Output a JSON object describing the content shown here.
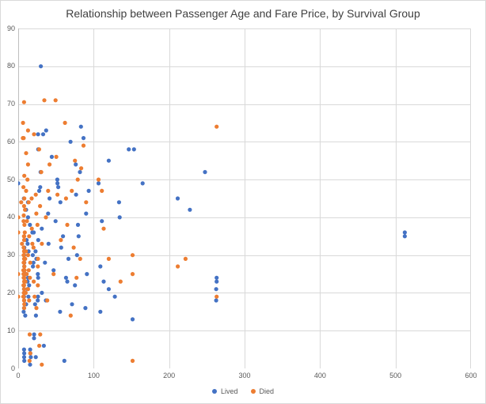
{
  "chart_data": {
    "type": "scatter",
    "title": "Relationship between Passenger Age and Fare Price, by Survival Group",
    "xlabel": "",
    "ylabel": "",
    "xlim": [
      0,
      600
    ],
    "ylim": [
      0,
      90
    ],
    "x_ticks": [
      0,
      100,
      200,
      300,
      400,
      500,
      600
    ],
    "y_ticks": [
      0,
      10,
      20,
      30,
      40,
      50,
      60,
      70,
      80,
      90
    ],
    "grid": true,
    "legend_position": "bottom",
    "colors": {
      "gridline": "#d9d9d9",
      "axis": "#bfbfbf",
      "tick_text": "#595959",
      "title_text": "#404040"
    },
    "series": [
      {
        "name": "Lived",
        "color": "#4472C4",
        "points": [
          [
            0,
            49
          ],
          [
            7.23,
            15
          ],
          [
            7.25,
            22
          ],
          [
            7.57,
            45
          ],
          [
            7.65,
            20
          ],
          [
            7.73,
            21
          ],
          [
            7.74,
            16
          ],
          [
            7.75,
            19
          ],
          [
            7.75,
            26
          ],
          [
            7.78,
            5
          ],
          [
            7.8,
            24
          ],
          [
            7.85,
            30
          ],
          [
            7.88,
            18
          ],
          [
            7.9,
            3
          ],
          [
            7.93,
            4
          ],
          [
            8.05,
            2
          ],
          [
            8.05,
            27
          ],
          [
            8.05,
            32
          ],
          [
            8.11,
            28
          ],
          [
            8.52,
            29
          ],
          [
            9.35,
            14
          ],
          [
            9.5,
            25
          ],
          [
            10.5,
            17
          ],
          [
            10.5,
            42
          ],
          [
            11.13,
            34
          ],
          [
            12.29,
            21
          ],
          [
            12.35,
            23
          ],
          [
            12.48,
            33
          ],
          [
            13,
            24
          ],
          [
            13,
            40
          ],
          [
            13,
            44
          ],
          [
            13.5,
            19
          ],
          [
            13.79,
            31
          ],
          [
            14.45,
            22
          ],
          [
            15.5,
            38
          ],
          [
            15.74,
            1
          ],
          [
            15.85,
            5
          ],
          [
            16.1,
            4
          ],
          [
            16.7,
            3
          ],
          [
            18.75,
            36
          ],
          [
            19.26,
            30
          ],
          [
            19.5,
            27
          ],
          [
            20.25,
            28
          ],
          [
            20.57,
            36
          ],
          [
            21,
            8
          ],
          [
            21.08,
            9
          ],
          [
            22.36,
            17
          ],
          [
            23,
            31
          ],
          [
            23.25,
            3
          ],
          [
            23.45,
            14
          ],
          [
            24.15,
            29
          ],
          [
            25.93,
            18
          ],
          [
            26,
            25
          ],
          [
            26.25,
            19
          ],
          [
            26.29,
            62
          ],
          [
            26.39,
            24
          ],
          [
            26.55,
            34
          ],
          [
            26.55,
            58
          ],
          [
            27.75,
            47
          ],
          [
            29.13,
            48
          ],
          [
            29.7,
            52
          ],
          [
            30,
            80
          ],
          [
            31.28,
            37
          ],
          [
            31.39,
            20
          ],
          [
            33,
            62
          ],
          [
            34.02,
            6
          ],
          [
            35.5,
            28
          ],
          [
            36.75,
            18
          ],
          [
            37,
            63
          ],
          [
            39.69,
            41
          ],
          [
            40.13,
            33
          ],
          [
            41.58,
            45
          ],
          [
            44.48,
            56
          ],
          [
            46.9,
            26
          ],
          [
            49.5,
            39
          ],
          [
            51.86,
            50
          ],
          [
            52,
            49
          ],
          [
            53.1,
            48
          ],
          [
            55.44,
            15
          ],
          [
            55.9,
            44
          ],
          [
            57,
            32
          ],
          [
            59.4,
            35
          ],
          [
            61.18,
            2
          ],
          [
            63.36,
            24
          ],
          [
            65,
            23
          ],
          [
            66.6,
            29
          ],
          [
            69.3,
            60
          ],
          [
            71.28,
            17
          ],
          [
            75.25,
            22
          ],
          [
            76.29,
            54
          ],
          [
            76.73,
            46
          ],
          [
            77.96,
            30
          ],
          [
            79.2,
            38
          ],
          [
            80,
            35
          ],
          [
            81.86,
            52
          ],
          [
            83.16,
            64
          ],
          [
            86.5,
            61
          ],
          [
            89.1,
            16
          ],
          [
            90,
            41
          ],
          [
            91.08,
            25
          ],
          [
            93.5,
            47
          ],
          [
            106.43,
            49
          ],
          [
            108.9,
            15
          ],
          [
            108.9,
            27
          ],
          [
            110.88,
            39
          ],
          [
            113.28,
            23
          ],
          [
            120,
            21
          ],
          [
            120,
            55
          ],
          [
            128.08,
            19
          ],
          [
            133.65,
            44
          ],
          [
            134.5,
            40
          ],
          [
            146.52,
            58
          ],
          [
            151.55,
            13
          ],
          [
            153.46,
            58
          ],
          [
            164.87,
            49
          ],
          [
            211.34,
            45
          ],
          [
            227.53,
            42
          ],
          [
            247.52,
            52
          ],
          [
            262.38,
            18
          ],
          [
            262.38,
            21
          ],
          [
            263,
            23
          ],
          [
            263,
            24
          ],
          [
            512.33,
            35
          ],
          [
            512.33,
            36
          ]
        ]
      },
      {
        "name": "Died",
        "color": "#ED7D31",
        "points": [
          [
            0,
            19
          ],
          [
            0,
            25
          ],
          [
            0,
            36
          ],
          [
            0,
            40
          ],
          [
            4.01,
            44
          ],
          [
            5,
            33
          ],
          [
            6.24,
            61
          ],
          [
            6.45,
            65
          ],
          [
            6.75,
            19
          ],
          [
            6.86,
            26
          ],
          [
            6.95,
            48
          ],
          [
            7.05,
            22
          ],
          [
            7.05,
            25
          ],
          [
            7.13,
            39
          ],
          [
            7.23,
            24
          ],
          [
            7.25,
            19
          ],
          [
            7.25,
            28
          ],
          [
            7.25,
            30
          ],
          [
            7.25,
            32
          ],
          [
            7.25,
            61
          ],
          [
            7.31,
            40.5
          ],
          [
            7.5,
            30
          ],
          [
            7.55,
            20
          ],
          [
            7.65,
            35
          ],
          [
            7.73,
            21
          ],
          [
            7.75,
            18
          ],
          [
            7.75,
            25
          ],
          [
            7.75,
            29
          ],
          [
            7.75,
            43
          ],
          [
            7.75,
            70.5
          ],
          [
            7.78,
            31
          ],
          [
            7.8,
            22
          ],
          [
            7.8,
            26
          ],
          [
            7.85,
            16
          ],
          [
            7.85,
            28
          ],
          [
            7.88,
            23
          ],
          [
            7.88,
            35
          ],
          [
            7.9,
            20
          ],
          [
            7.9,
            34
          ],
          [
            8.05,
            17
          ],
          [
            8.05,
            21
          ],
          [
            8.05,
            24
          ],
          [
            8.05,
            27
          ],
          [
            8.05,
            45
          ],
          [
            8.05,
            51
          ],
          [
            8.3,
            38
          ],
          [
            8.46,
            26
          ],
          [
            8.66,
            36
          ],
          [
            9,
            42
          ],
          [
            9.22,
            29
          ],
          [
            9.5,
            23
          ],
          [
            9.84,
            20
          ],
          [
            10.17,
            31
          ],
          [
            10.5,
            47
          ],
          [
            10.5,
            57
          ],
          [
            11.24,
            25
          ],
          [
            11.5,
            39
          ],
          [
            12.28,
            50
          ],
          [
            13,
            21
          ],
          [
            13,
            30
          ],
          [
            13,
            54
          ],
          [
            13,
            63
          ],
          [
            13.86,
            44
          ],
          [
            14,
            26
          ],
          [
            14.46,
            35
          ],
          [
            14.5,
            18
          ],
          [
            15.05,
            2
          ],
          [
            15.25,
            9
          ],
          [
            15.5,
            24
          ],
          [
            15.9,
            28
          ],
          [
            16.1,
            4
          ],
          [
            17.8,
            45
          ],
          [
            18,
            37
          ],
          [
            18.79,
            33
          ],
          [
            20.21,
            32
          ],
          [
            20.53,
            23
          ],
          [
            21,
            62
          ],
          [
            21.68,
            19
          ],
          [
            23.25,
            46
          ],
          [
            24,
            41
          ],
          [
            24.15,
            16
          ],
          [
            25.47,
            38
          ],
          [
            26,
            22
          ],
          [
            26,
            27
          ],
          [
            26.25,
            29
          ],
          [
            27.72,
            58
          ],
          [
            27.9,
            6
          ],
          [
            29,
            43
          ],
          [
            29.12,
            9
          ],
          [
            30.5,
            52
          ],
          [
            31.27,
            1
          ],
          [
            31.39,
            33
          ],
          [
            34.65,
            71
          ],
          [
            36.75,
            40
          ],
          [
            38.5,
            18
          ],
          [
            39.6,
            47
          ],
          [
            41.58,
            54
          ],
          [
            46.9,
            25
          ],
          [
            49.5,
            71
          ],
          [
            50.49,
            56
          ],
          [
            52,
            46
          ],
          [
            56.5,
            34
          ],
          [
            61.98,
            65
          ],
          [
            63.36,
            45
          ],
          [
            65,
            38
          ],
          [
            69.55,
            14
          ],
          [
            71,
            47
          ],
          [
            73.5,
            32
          ],
          [
            75.24,
            55
          ],
          [
            77.29,
            24
          ],
          [
            78.85,
            50
          ],
          [
            82.17,
            29
          ],
          [
            83.47,
            53
          ],
          [
            86.5,
            59
          ],
          [
            90,
            44
          ],
          [
            106.43,
            50
          ],
          [
            110.88,
            47
          ],
          [
            113.28,
            37
          ],
          [
            120,
            29
          ],
          [
            135.63,
            23
          ],
          [
            151.55,
            2
          ],
          [
            151.55,
            25
          ],
          [
            151.55,
            30
          ],
          [
            211.5,
            27
          ],
          [
            221.78,
            29
          ],
          [
            263,
            19
          ],
          [
            263,
            64
          ]
        ]
      }
    ]
  },
  "legend": {
    "lived_label": "Lived",
    "died_label": "Died"
  }
}
